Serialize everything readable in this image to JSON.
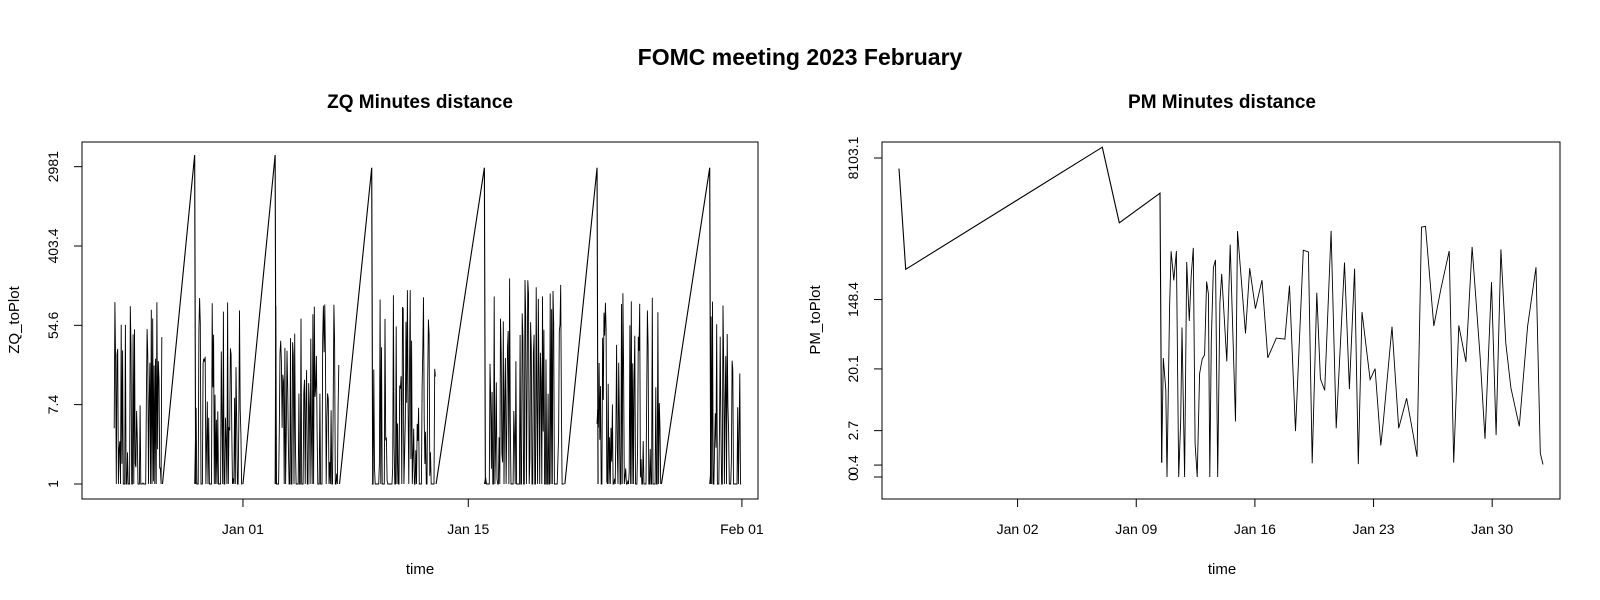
{
  "title": "FOMC meeting 2023 February",
  "chart_data": [
    {
      "type": "line",
      "title": "ZQ Minutes distance",
      "xlabel": "time",
      "ylabel": "ZQ_toPlot",
      "yscale": "log",
      "x_range": [
        "2022-12-22",
        "2023-02-02"
      ],
      "x_ticks": [
        {
          "date": "2023-01-01",
          "label": "Jan 01"
        },
        {
          "date": "2023-01-15",
          "label": "Jan 15"
        },
        {
          "date": "2023-02-01",
          "label": "Feb 01"
        }
      ],
      "y_ticks": [
        1,
        7.4,
        54.6,
        403.4,
        2981
      ],
      "ylim": [
        1,
        4000
      ],
      "segments": [
        {
          "from": "2022-12-24",
          "to": "2022-12-27",
          "low": 1,
          "high": 100
        },
        {
          "from": "2022-12-29",
          "to": "2023-01-01",
          "low": 1,
          "high": 110
        },
        {
          "from": "2023-01-03",
          "to": "2023-01-07",
          "low": 1,
          "high": 100
        },
        {
          "from": "2023-01-09",
          "to": "2023-01-13",
          "low": 1,
          "high": 160
        },
        {
          "from": "2023-01-16",
          "to": "2023-01-21",
          "low": 1,
          "high": 180
        },
        {
          "from": "2023-01-23",
          "to": "2023-01-27",
          "low": 1,
          "high": 170
        },
        {
          "from": "2023-01-30",
          "to": "2023-02-01",
          "low": 1,
          "high": 110
        }
      ],
      "ramps": [
        {
          "from": "2022-12-27",
          "to": "2022-12-29",
          "start": 1,
          "peak": 4000
        },
        {
          "from": "2023-01-01",
          "to": "2023-01-03",
          "start": 1,
          "peak": 4000
        },
        {
          "from": "2023-01-07",
          "to": "2023-01-09",
          "start": 1,
          "peak": 2900
        },
        {
          "from": "2023-01-13",
          "to": "2023-01-16",
          "start": 1,
          "peak": 2900
        },
        {
          "from": "2023-01-21",
          "to": "2023-01-23",
          "start": 1,
          "peak": 2900
        },
        {
          "from": "2023-01-27",
          "to": "2023-01-30",
          "start": 1,
          "peak": 2900
        }
      ]
    },
    {
      "type": "line",
      "title": "PM Minutes distance",
      "xlabel": "time",
      "ylabel": "PM_toPlot",
      "yscale": "log",
      "x_range": [
        "2022-12-25",
        "2023-02-03"
      ],
      "x_ticks": [
        {
          "date": "2023-01-02",
          "label": "Jan 02"
        },
        {
          "date": "2023-01-09",
          "label": "Jan 09"
        },
        {
          "date": "2023-01-16",
          "label": "Jan 16"
        },
        {
          "date": "2023-01-23",
          "label": "Jan 23"
        },
        {
          "date": "2023-01-30",
          "label": "Jan 30"
        }
      ],
      "y_ticks": [
        "0",
        "0.4",
        "2.7",
        "20.1",
        "148.4",
        "8103.1"
      ],
      "ylim": [
        0,
        8103.1
      ],
      "initial_path": [
        {
          "x": "2022-12-26",
          "y": 6000
        },
        {
          "x": "2022-12-26.4",
          "y": 350
        },
        {
          "x": "2023-01-07",
          "y": 11000
        },
        {
          "x": "2023-01-08",
          "y": 1300
        },
        {
          "x": "2023-01-10.4",
          "y": 3000
        },
        {
          "x": "2023-01-10.5",
          "y": 0.5
        }
      ],
      "segment": {
        "from": "2023-01-10.5",
        "to": "2023-02-02",
        "low": 0.3,
        "high": 1500
      }
    }
  ]
}
